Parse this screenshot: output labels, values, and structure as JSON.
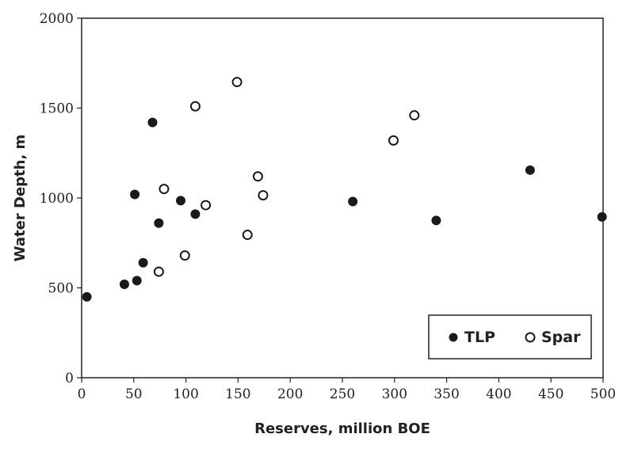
{
  "chart_data": {
    "type": "scatter",
    "xlabel": "Reserves, million BOE",
    "ylabel": "Water Depth, m",
    "xlim": [
      0,
      500
    ],
    "ylim": [
      0,
      2000
    ],
    "xticks": [
      0,
      50,
      100,
      150,
      200,
      250,
      300,
      350,
      400,
      450,
      500
    ],
    "yticks": [
      0,
      500,
      1000,
      1500,
      2000
    ],
    "grid": false,
    "legend_position": "bottom-right",
    "series": [
      {
        "name": "TLP",
        "marker": "filled-circle",
        "color": "#1a1a1a",
        "points": [
          {
            "x": 5,
            "y": 450
          },
          {
            "x": 41,
            "y": 520
          },
          {
            "x": 53,
            "y": 540
          },
          {
            "x": 59,
            "y": 640
          },
          {
            "x": 51,
            "y": 1020
          },
          {
            "x": 68,
            "y": 1420
          },
          {
            "x": 74,
            "y": 860
          },
          {
            "x": 95,
            "y": 985
          },
          {
            "x": 109,
            "y": 910
          },
          {
            "x": 260,
            "y": 980
          },
          {
            "x": 340,
            "y": 875
          },
          {
            "x": 430,
            "y": 1155
          },
          {
            "x": 499,
            "y": 895
          }
        ]
      },
      {
        "name": "Spar",
        "marker": "open-circle",
        "color": "#1a1a1a",
        "points": [
          {
            "x": 74,
            "y": 590
          },
          {
            "x": 79,
            "y": 1050
          },
          {
            "x": 99,
            "y": 680
          },
          {
            "x": 109,
            "y": 1510
          },
          {
            "x": 119,
            "y": 960
          },
          {
            "x": 149,
            "y": 1645
          },
          {
            "x": 159,
            "y": 795
          },
          {
            "x": 169,
            "y": 1120
          },
          {
            "x": 174,
            "y": 1015
          },
          {
            "x": 299,
            "y": 1320
          },
          {
            "x": 319,
            "y": 1460
          }
        ]
      }
    ]
  }
}
